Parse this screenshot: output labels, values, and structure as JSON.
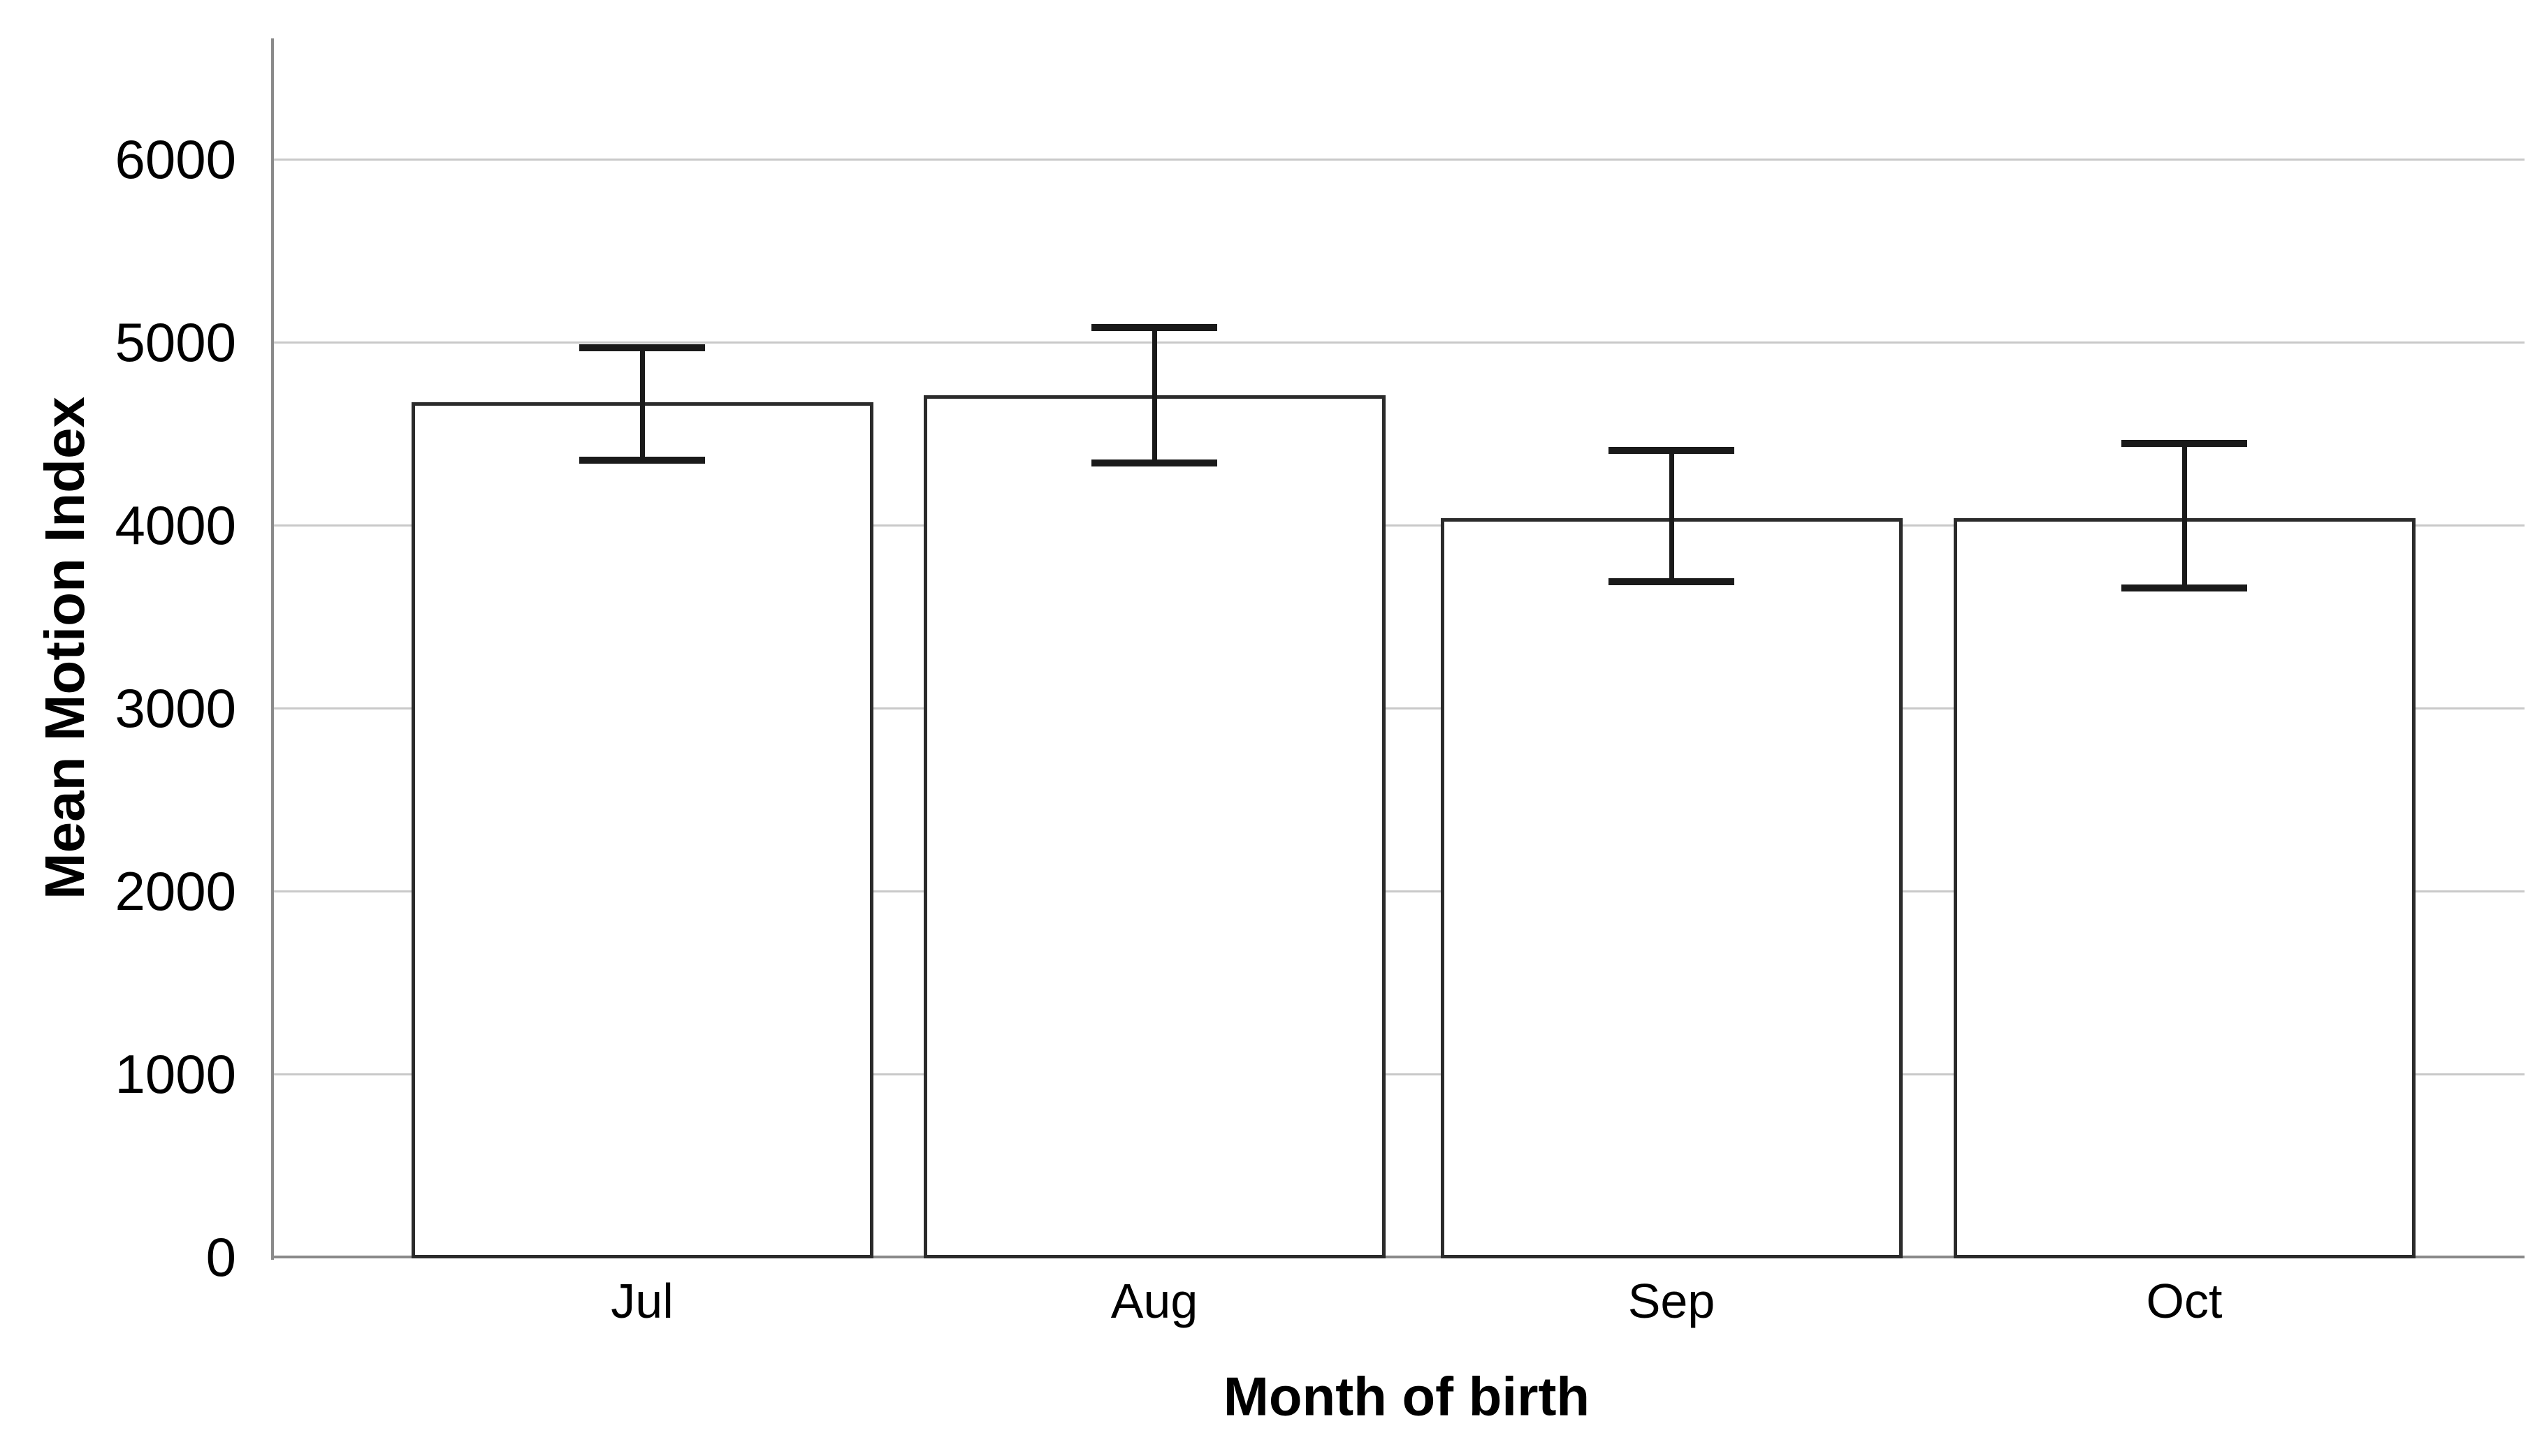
{
  "chart_data": {
    "type": "bar",
    "title": "",
    "categories": [
      "Jul",
      "Aug",
      "Sep",
      "Oct"
    ],
    "values": [
      4670,
      4710,
      4040,
      4040
    ],
    "series": [
      {
        "name": "Mean Motion Index",
        "values": [
          4670,
          4710,
          4040,
          4040
        ],
        "error_upper": [
          4970,
          5080,
          4410,
          4445
        ],
        "error_lower": [
          4355,
          4340,
          3690,
          3655
        ]
      }
    ],
    "xlabel": "Month of birth",
    "ylabel": "Mean Motion Index",
    "ylim": [
      0,
      6600
    ],
    "yticks": [
      0,
      1000,
      2000,
      3000,
      4000,
      5000,
      6000
    ],
    "grid": true,
    "legend": false,
    "colors": {
      "background": "#ffffff",
      "bar_fill": "#ffffff",
      "bar_stroke": "#2b2b2b",
      "error_bar": "#1a1a1a",
      "gridline": "#c9c9c9",
      "axis": "#8a8a8a",
      "text": "#000000"
    }
  }
}
